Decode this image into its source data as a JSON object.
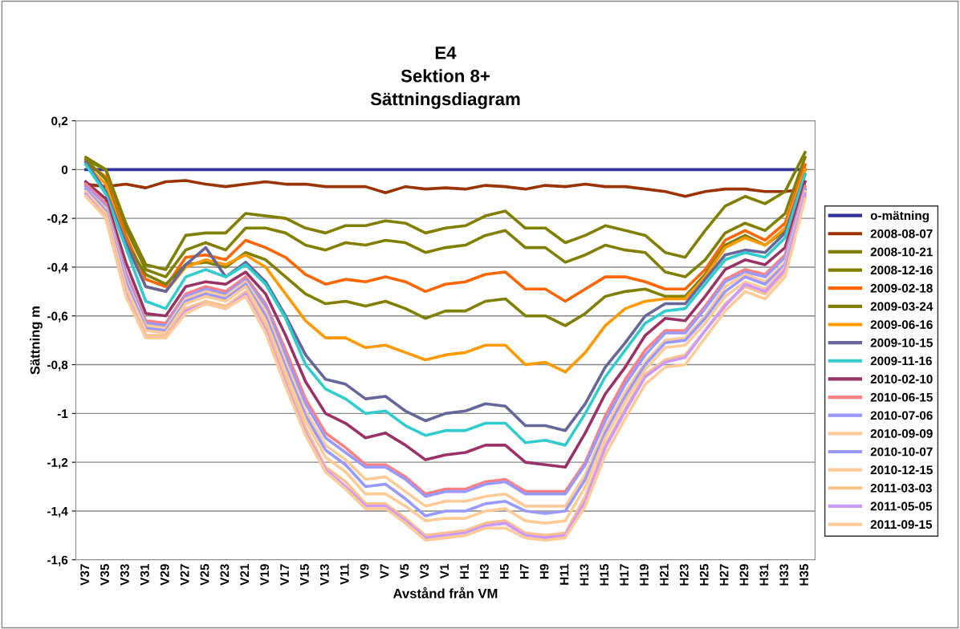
{
  "chart_data": {
    "type": "line",
    "title": "E4\nSektion 8+\nSättningsdiagram",
    "xlabel": "Avstånd från VM",
    "ylabel": "Sättning m",
    "categories": [
      "V37",
      "V35",
      "V33",
      "V31",
      "V29",
      "V27",
      "V25",
      "V23",
      "V21",
      "V19",
      "V17",
      "V15",
      "V13",
      "V11",
      "V9",
      "V7",
      "V5",
      "V3",
      "V1",
      "H1",
      "H3",
      "H5",
      "H7",
      "H9",
      "H11",
      "H13",
      "H15",
      "H17",
      "H19",
      "H21",
      "H23",
      "H25",
      "H27",
      "H29",
      "H31",
      "H33",
      "H35"
    ],
    "ylim": [
      -1.6,
      0.2
    ],
    "yticks": [
      {
        "value": -1.6,
        "label": "-1,6"
      },
      {
        "value": -1.4,
        "label": "-1,4"
      },
      {
        "value": -1.2,
        "label": "-1,2"
      },
      {
        "value": -1,
        "label": "-1"
      },
      {
        "value": -0.8,
        "label": "-0,8"
      },
      {
        "value": -0.6,
        "label": "-0,6"
      },
      {
        "value": -0.4,
        "label": "-0,4"
      },
      {
        "value": -0.2,
        "label": "-0,2"
      },
      {
        "value": 0,
        "label": "0"
      },
      {
        "value": 0.2,
        "label": "0,2"
      }
    ],
    "grid": "y",
    "legend": "right",
    "marker": "none",
    "line_style": "solid",
    "series": [
      {
        "name": "o-mätning",
        "color": "#333399",
        "values": [
          0,
          0,
          0,
          0,
          0,
          0,
          0,
          0,
          0,
          0,
          0,
          0,
          0,
          0,
          0,
          0,
          0,
          0,
          0,
          0,
          0,
          0,
          0,
          0,
          0,
          0,
          0,
          0,
          0,
          0,
          0,
          0,
          0,
          0,
          0,
          0,
          0
        ]
      },
      {
        "name": "2008-08-07",
        "color": "#993300",
        "values": [
          -0.06,
          -0.07,
          -0.06,
          -0.075,
          -0.05,
          -0.045,
          -0.06,
          -0.07,
          -0.06,
          -0.05,
          -0.06,
          -0.06,
          -0.07,
          -0.07,
          -0.07,
          -0.095,
          -0.07,
          -0.08,
          -0.075,
          -0.08,
          -0.065,
          -0.07,
          -0.08,
          -0.065,
          -0.07,
          -0.06,
          -0.07,
          -0.07,
          -0.08,
          -0.09,
          -0.11,
          -0.09,
          -0.08,
          -0.08,
          -0.09,
          -0.09,
          -0.08
        ]
      },
      {
        "name": "2008-10-21",
        "color": "#808000",
        "values": [
          0.05,
          0.0,
          -0.22,
          -0.39,
          -0.41,
          -0.27,
          -0.26,
          -0.26,
          -0.18,
          -0.19,
          -0.2,
          -0.24,
          -0.26,
          -0.23,
          -0.23,
          -0.21,
          -0.22,
          -0.26,
          -0.24,
          -0.23,
          -0.19,
          -0.17,
          -0.24,
          -0.24,
          -0.3,
          -0.27,
          -0.23,
          -0.25,
          -0.27,
          -0.34,
          -0.36,
          -0.25,
          -0.15,
          -0.11,
          -0.14,
          -0.09,
          0.07
        ]
      },
      {
        "name": "2008-12-16",
        "color": "#808000",
        "values": [
          0.04,
          0.0,
          -0.24,
          -0.41,
          -0.44,
          -0.33,
          -0.3,
          -0.33,
          -0.24,
          -0.24,
          -0.26,
          -0.31,
          -0.33,
          -0.3,
          -0.31,
          -0.29,
          -0.3,
          -0.34,
          -0.32,
          -0.31,
          -0.27,
          -0.25,
          -0.32,
          -0.32,
          -0.38,
          -0.35,
          -0.31,
          -0.33,
          -0.34,
          -0.42,
          -0.44,
          -0.37,
          -0.26,
          -0.22,
          -0.25,
          -0.18,
          0.05
        ]
      },
      {
        "name": "2009-02-18",
        "color": "#ff6600",
        "values": [
          0.03,
          -0.03,
          -0.27,
          -0.45,
          -0.48,
          -0.36,
          -0.35,
          -0.37,
          -0.29,
          -0.32,
          -0.36,
          -0.43,
          -0.47,
          -0.45,
          -0.46,
          -0.44,
          -0.46,
          -0.5,
          -0.47,
          -0.46,
          -0.43,
          -0.42,
          -0.49,
          -0.49,
          -0.54,
          -0.49,
          -0.44,
          -0.44,
          -0.46,
          -0.49,
          -0.49,
          -0.41,
          -0.29,
          -0.25,
          -0.29,
          -0.22,
          0.02
        ]
      },
      {
        "name": "2009-03-24",
        "color": "#808000",
        "values": [
          0.04,
          -0.04,
          -0.3,
          -0.43,
          -0.47,
          -0.39,
          -0.38,
          -0.4,
          -0.34,
          -0.37,
          -0.44,
          -0.51,
          -0.55,
          -0.54,
          -0.56,
          -0.54,
          -0.57,
          -0.61,
          -0.58,
          -0.58,
          -0.54,
          -0.53,
          -0.6,
          -0.6,
          -0.64,
          -0.59,
          -0.52,
          -0.5,
          -0.49,
          -0.52,
          -0.52,
          -0.43,
          -0.31,
          -0.27,
          -0.31,
          -0.25,
          0.0
        ]
      },
      {
        "name": "2009-06-16",
        "color": "#ff9900",
        "values": [
          0.02,
          -0.06,
          -0.3,
          -0.48,
          -0.5,
          -0.4,
          -0.37,
          -0.39,
          -0.35,
          -0.4,
          -0.51,
          -0.62,
          -0.69,
          -0.69,
          -0.73,
          -0.72,
          -0.75,
          -0.78,
          -0.76,
          -0.75,
          -0.72,
          -0.72,
          -0.8,
          -0.79,
          -0.83,
          -0.75,
          -0.64,
          -0.57,
          -0.54,
          -0.53,
          -0.53,
          -0.44,
          -0.32,
          -0.28,
          -0.31,
          -0.24,
          0.0
        ]
      },
      {
        "name": "2009-10-15",
        "color": "#666699",
        "values": [
          0.03,
          -0.09,
          -0.3,
          -0.48,
          -0.5,
          -0.39,
          -0.32,
          -0.44,
          -0.38,
          -0.46,
          -0.6,
          -0.76,
          -0.86,
          -0.88,
          -0.94,
          -0.93,
          -0.99,
          -1.03,
          -1.0,
          -0.99,
          -0.96,
          -0.97,
          -1.05,
          -1.05,
          -1.07,
          -0.96,
          -0.81,
          -0.71,
          -0.6,
          -0.55,
          -0.55,
          -0.45,
          -0.35,
          -0.33,
          -0.34,
          -0.26,
          -0.02
        ]
      },
      {
        "name": "2009-11-16",
        "color": "#33cccc",
        "values": [
          0.02,
          -0.1,
          -0.32,
          -0.54,
          -0.57,
          -0.44,
          -0.41,
          -0.44,
          -0.39,
          -0.47,
          -0.61,
          -0.8,
          -0.9,
          -0.94,
          -1.0,
          -0.99,
          -1.05,
          -1.09,
          -1.07,
          -1.07,
          -1.04,
          -1.04,
          -1.12,
          -1.11,
          -1.13,
          -1.0,
          -0.85,
          -0.74,
          -0.63,
          -0.58,
          -0.57,
          -0.47,
          -0.37,
          -0.34,
          -0.36,
          -0.28,
          -0.02
        ]
      },
      {
        "name": "2010-02-10",
        "color": "#993366",
        "values": [
          -0.05,
          -0.12,
          -0.38,
          -0.59,
          -0.6,
          -0.48,
          -0.46,
          -0.47,
          -0.42,
          -0.51,
          -0.68,
          -0.87,
          -1.0,
          -1.04,
          -1.1,
          -1.08,
          -1.13,
          -1.19,
          -1.17,
          -1.16,
          -1.13,
          -1.13,
          -1.2,
          -1.21,
          -1.22,
          -1.08,
          -0.92,
          -0.81,
          -0.68,
          -0.61,
          -0.62,
          -0.52,
          -0.41,
          -0.37,
          -0.39,
          -0.32,
          -0.05
        ]
      },
      {
        "name": "2010-06-15",
        "color": "#ff8080",
        "values": [
          -0.06,
          -0.14,
          -0.42,
          -0.62,
          -0.63,
          -0.51,
          -0.48,
          -0.5,
          -0.44,
          -0.55,
          -0.74,
          -0.94,
          -1.08,
          -1.14,
          -1.21,
          -1.21,
          -1.26,
          -1.33,
          -1.31,
          -1.31,
          -1.28,
          -1.27,
          -1.32,
          -1.32,
          -1.32,
          -1.2,
          -1.01,
          -0.86,
          -0.74,
          -0.66,
          -0.66,
          -0.56,
          -0.45,
          -0.41,
          -0.43,
          -0.35,
          -0.07
        ]
      },
      {
        "name": "2010-07-06",
        "color": "#9999ff",
        "values": [
          -0.07,
          -0.15,
          -0.43,
          -0.63,
          -0.64,
          -0.52,
          -0.49,
          -0.51,
          -0.45,
          -0.56,
          -0.76,
          -0.96,
          -1.1,
          -1.16,
          -1.22,
          -1.22,
          -1.27,
          -1.34,
          -1.32,
          -1.32,
          -1.29,
          -1.28,
          -1.33,
          -1.33,
          -1.33,
          -1.21,
          -1.03,
          -0.88,
          -0.76,
          -0.67,
          -0.67,
          -0.57,
          -0.46,
          -0.42,
          -0.44,
          -0.36,
          -0.08
        ]
      },
      {
        "name": "2010-09-09",
        "color": "#ffcc99",
        "values": [
          -0.08,
          -0.16,
          -0.45,
          -0.64,
          -0.65,
          -0.53,
          -0.5,
          -0.52,
          -0.46,
          -0.58,
          -0.79,
          -0.99,
          -1.13,
          -1.19,
          -1.27,
          -1.26,
          -1.32,
          -1.38,
          -1.36,
          -1.36,
          -1.34,
          -1.33,
          -1.38,
          -1.38,
          -1.38,
          -1.25,
          -1.06,
          -0.91,
          -0.79,
          -0.7,
          -0.69,
          -0.6,
          -0.48,
          -0.43,
          -0.46,
          -0.38,
          -0.09
        ]
      },
      {
        "name": "2010-10-07",
        "color": "#9999ff",
        "values": [
          -0.08,
          -0.17,
          -0.46,
          -0.65,
          -0.66,
          -0.54,
          -0.51,
          -0.53,
          -0.47,
          -0.6,
          -0.81,
          -1.01,
          -1.15,
          -1.21,
          -1.3,
          -1.29,
          -1.35,
          -1.42,
          -1.4,
          -1.4,
          -1.37,
          -1.36,
          -1.4,
          -1.41,
          -1.4,
          -1.27,
          -1.08,
          -0.93,
          -0.8,
          -0.71,
          -0.7,
          -0.61,
          -0.5,
          -0.44,
          -0.47,
          -0.39,
          -0.1
        ]
      },
      {
        "name": "2010-12-15",
        "color": "#ffcc99",
        "values": [
          -0.09,
          -0.18,
          -0.48,
          -0.66,
          -0.67,
          -0.55,
          -0.52,
          -0.54,
          -0.48,
          -0.62,
          -0.83,
          -1.03,
          -1.18,
          -1.24,
          -1.33,
          -1.33,
          -1.38,
          -1.44,
          -1.43,
          -1.43,
          -1.4,
          -1.39,
          -1.44,
          -1.45,
          -1.44,
          -1.3,
          -1.1,
          -0.95,
          -0.82,
          -0.73,
          -0.72,
          -0.63,
          -0.52,
          -0.46,
          -0.49,
          -0.4,
          -0.1
        ]
      },
      {
        "name": "2011-03-03",
        "color": "#fac090",
        "values": [
          -0.1,
          -0.19,
          -0.5,
          -0.68,
          -0.68,
          -0.57,
          -0.54,
          -0.56,
          -0.5,
          -0.64,
          -0.86,
          -1.06,
          -1.22,
          -1.28,
          -1.37,
          -1.37,
          -1.43,
          -1.5,
          -1.49,
          -1.48,
          -1.45,
          -1.44,
          -1.49,
          -1.5,
          -1.49,
          -1.34,
          -1.13,
          -0.98,
          -0.84,
          -0.78,
          -0.76,
          -0.66,
          -0.55,
          -0.48,
          -0.51,
          -0.42,
          -0.11
        ]
      },
      {
        "name": "2011-05-05",
        "color": "#cc99ff",
        "values": [
          -0.1,
          -0.2,
          -0.51,
          -0.69,
          -0.69,
          -0.58,
          -0.55,
          -0.57,
          -0.51,
          -0.66,
          -0.88,
          -1.08,
          -1.23,
          -1.3,
          -1.38,
          -1.38,
          -1.44,
          -1.51,
          -1.5,
          -1.49,
          -1.46,
          -1.45,
          -1.5,
          -1.51,
          -1.5,
          -1.36,
          -1.14,
          -0.99,
          -0.85,
          -0.79,
          -0.77,
          -0.66,
          -0.56,
          -0.47,
          -0.5,
          -0.41,
          -0.1
        ]
      },
      {
        "name": "2011-09-15",
        "color": "#ffcc99",
        "values": [
          -0.11,
          -0.2,
          -0.52,
          -0.69,
          -0.69,
          -0.59,
          -0.55,
          -0.57,
          -0.52,
          -0.67,
          -0.89,
          -1.09,
          -1.24,
          -1.31,
          -1.39,
          -1.39,
          -1.45,
          -1.52,
          -1.51,
          -1.5,
          -1.47,
          -1.47,
          -1.51,
          -1.52,
          -1.51,
          -1.38,
          -1.17,
          -1.02,
          -0.88,
          -0.81,
          -0.8,
          -0.69,
          -0.58,
          -0.5,
          -0.53,
          -0.44,
          -0.12
        ]
      }
    ]
  }
}
